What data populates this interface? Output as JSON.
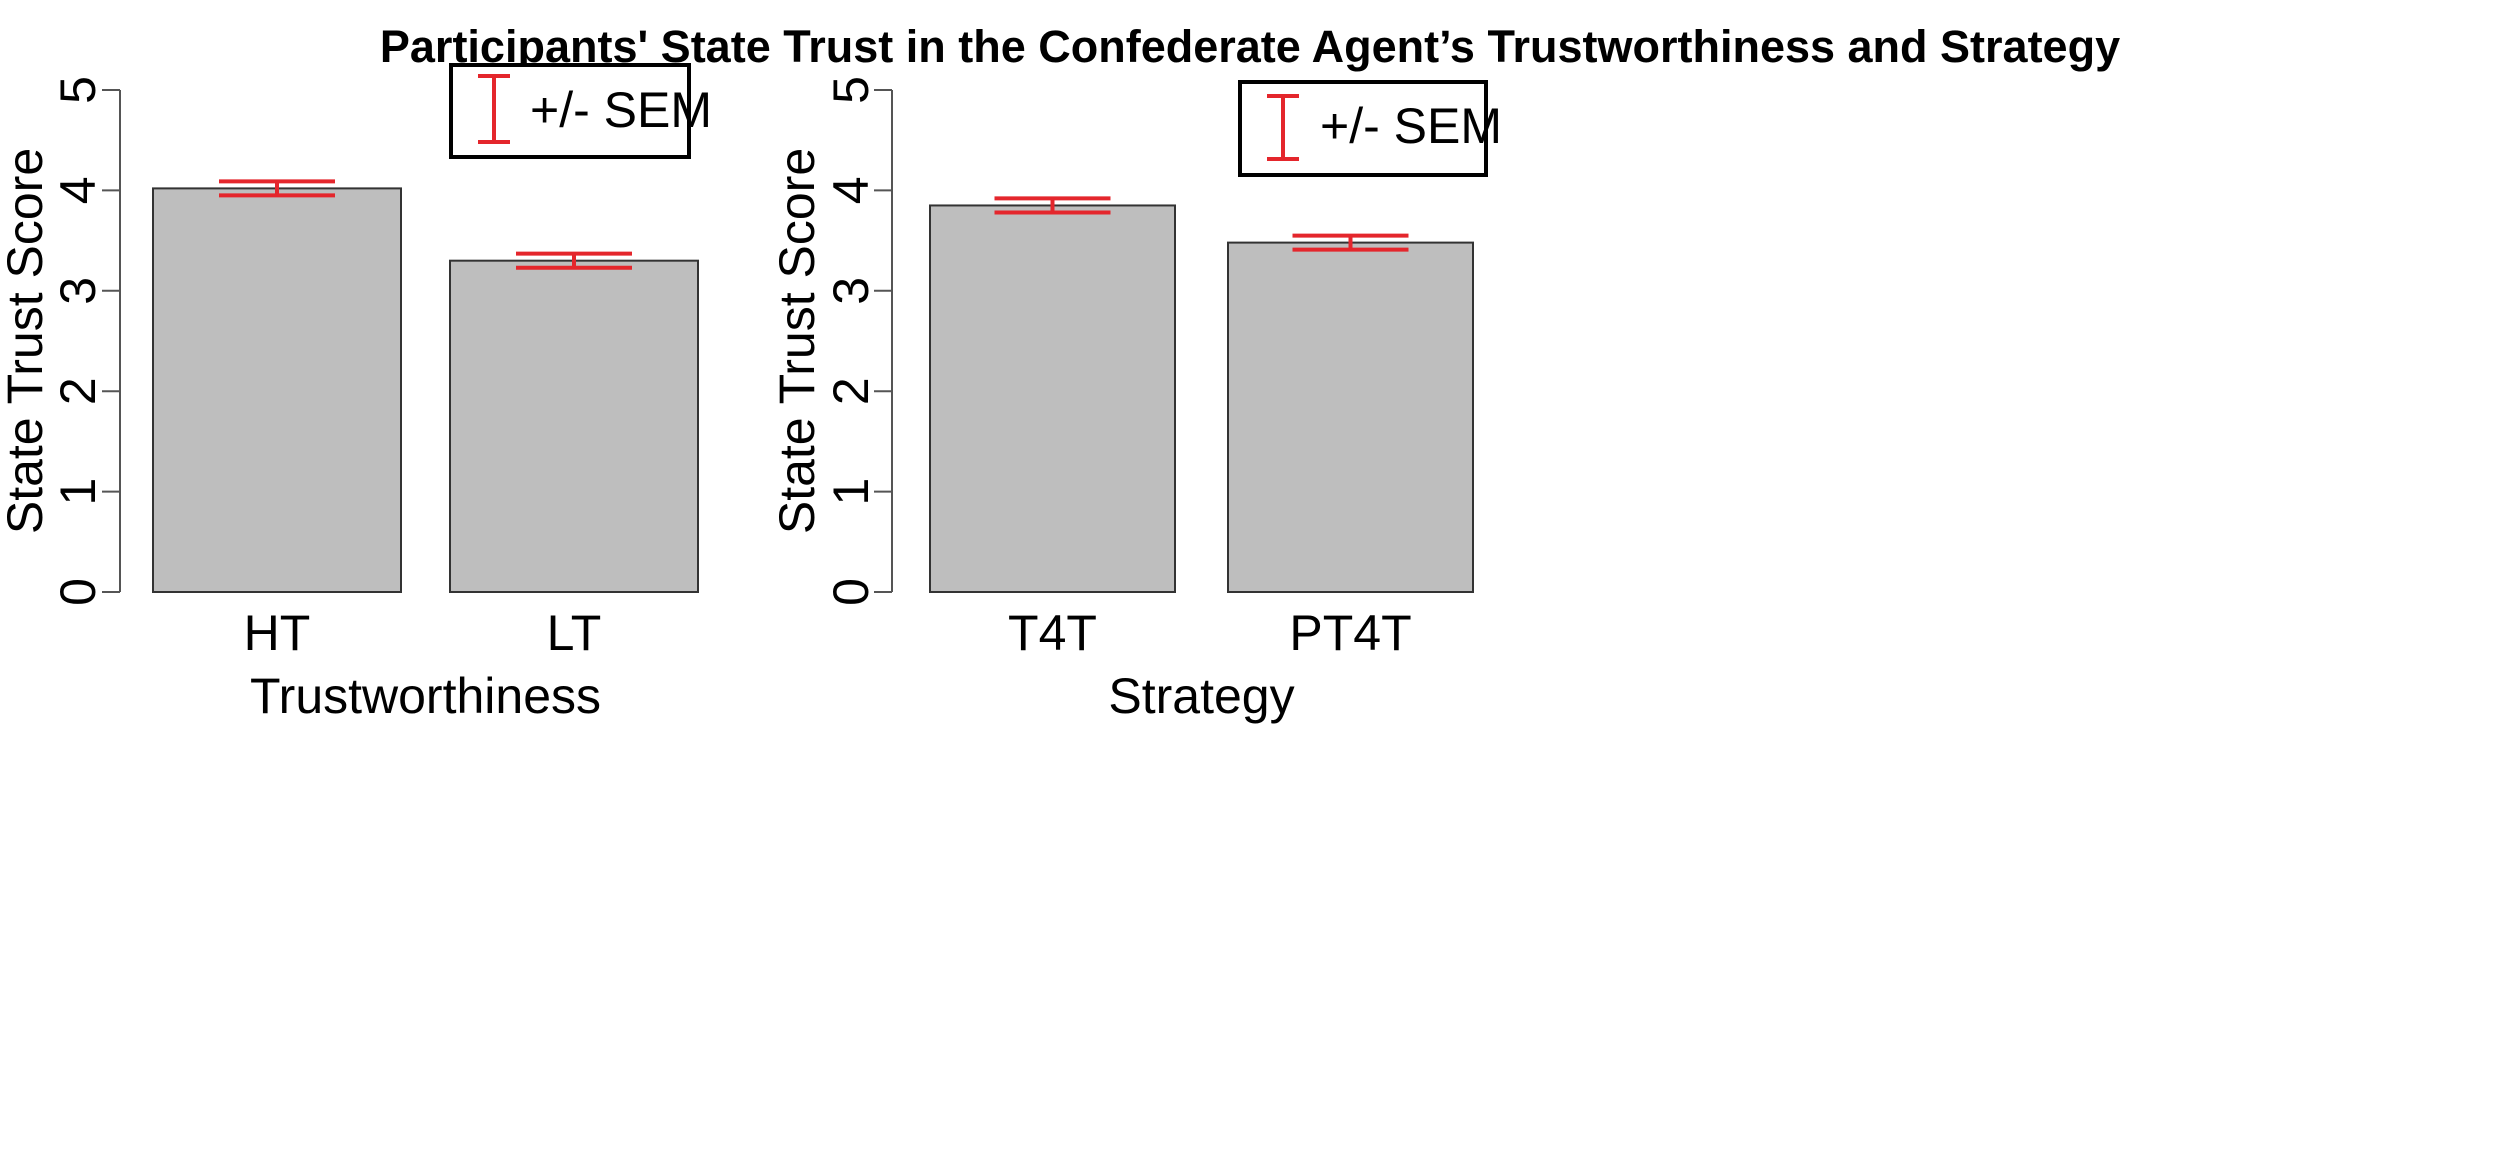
{
  "title": "Participants' State Trust in the Confederate Agent’s Trustworthiness and Strategy",
  "colors": {
    "bar_fill": "#bebebe",
    "bar_stroke": "#333333",
    "error_bar": "#e4262c",
    "axis": "#555555",
    "text": "#000000"
  },
  "chart_data": [
    {
      "type": "bar",
      "categories": [
        "HT",
        "LT"
      ],
      "series": [
        {
          "values": [
            4.02,
            3.3
          ],
          "sem": [
            0.07,
            0.07
          ]
        }
      ],
      "xlabel": "Trustworthiness",
      "ylabel": "State Trust Score",
      "ylim": [
        0,
        5
      ],
      "yticks": [
        "0",
        "1",
        "2",
        "3",
        "4",
        "5"
      ],
      "grid": false,
      "legend": {
        "label": "+/- SEM",
        "position": "top-right"
      }
    },
    {
      "type": "bar",
      "categories": [
        "T4T",
        "PT4T"
      ],
      "series": [
        {
          "values": [
            3.85,
            3.48
          ],
          "sem": [
            0.07,
            0.07
          ]
        }
      ],
      "xlabel": "Strategy",
      "ylabel": "State Trust Score",
      "ylim": [
        0,
        5
      ],
      "yticks": [
        "0",
        "1",
        "2",
        "3",
        "4",
        "5"
      ],
      "grid": false,
      "legend": {
        "label": "+/- SEM",
        "position": "top-right"
      }
    }
  ]
}
